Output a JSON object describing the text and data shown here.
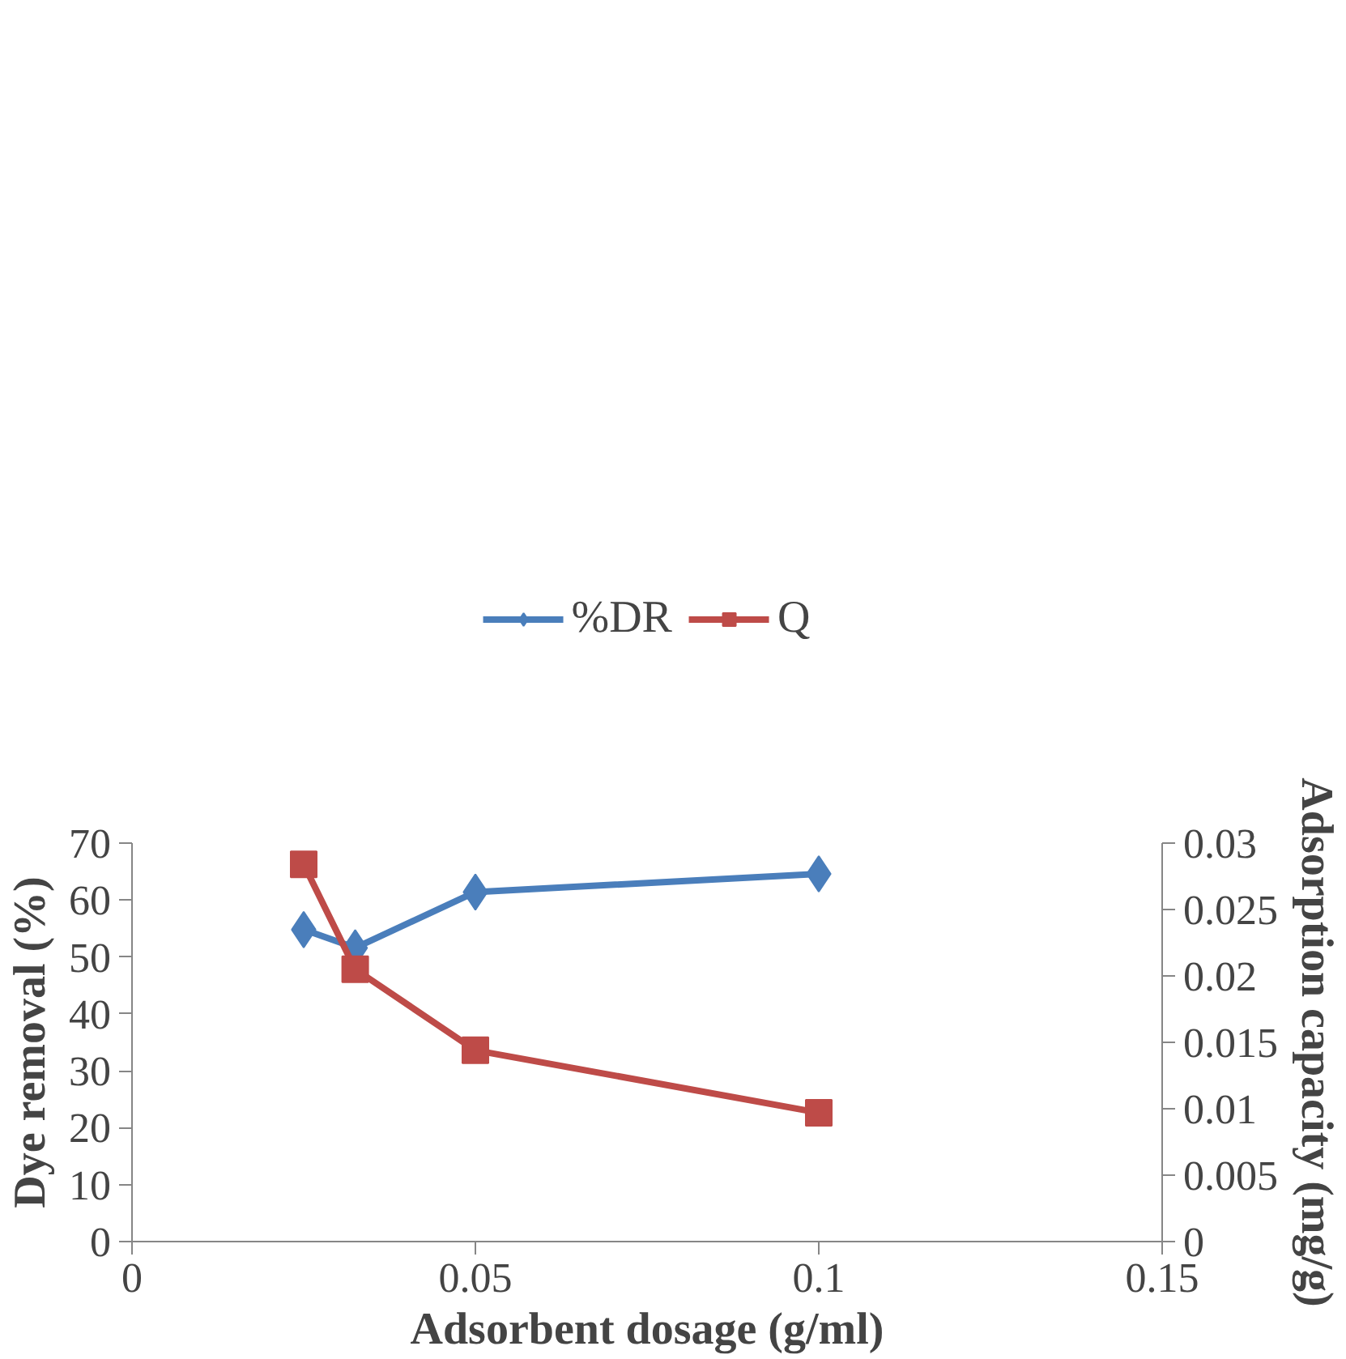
{
  "chart_data": {
    "type": "line",
    "xlabel": "Adsorbent dosage (g/ml)",
    "ylabel": "Dye removal (%)",
    "y2label": "Adsorption capacity (mg/g)",
    "x": [
      0.025,
      0.0325,
      0.05,
      0.1
    ],
    "series": [
      {
        "name": "%DR",
        "color": "#4a7ebb",
        "values": [
          54.8,
          51.6,
          61.4,
          64.6
        ],
        "marker": "diamond"
      },
      {
        "name": "Q",
        "color": "#be4b48",
        "values": [
          0.0284,
          0.0205,
          0.0144,
          0.0097
        ],
        "marker": "square",
        "axis": "y2"
      }
    ],
    "xlim": [
      0,
      0.15
    ],
    "xticks": [
      0,
      0.05,
      0.1,
      0.15
    ],
    "ylim": [
      0,
      70
    ],
    "yticks": [
      0,
      10,
      20,
      30,
      40,
      50,
      60,
      70
    ],
    "y2lim": [
      0,
      0.03
    ],
    "y2ticks": [
      0,
      0.005,
      0.01,
      0.015,
      0.02,
      0.025,
      0.03
    ],
    "grid": false,
    "legend": "top",
    "line_style": "solid"
  }
}
